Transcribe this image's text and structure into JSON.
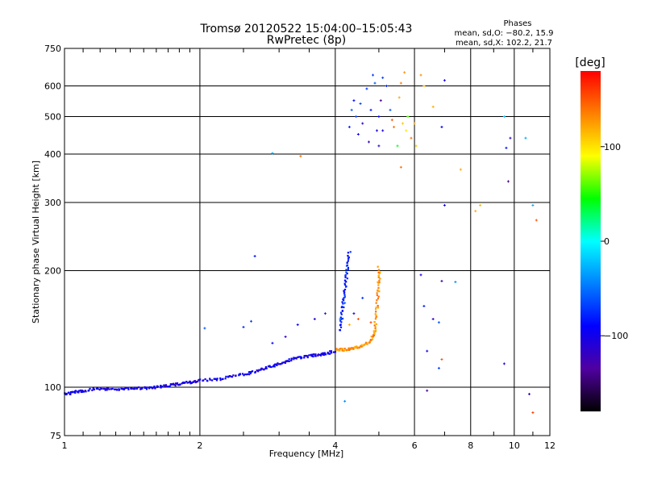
{
  "chart_data": {
    "type": "scatter",
    "title": "Tromsø 20120522 15:04:00–15:05:43",
    "subtitle": "RwPretec (8p)",
    "xlabel": "Frequency [MHz]",
    "ylabel": "Stationary phase Virtual Height [km]",
    "x_scale": "log",
    "y_scale": "log",
    "xlim": [
      1,
      12
    ],
    "ylim": [
      75,
      750
    ],
    "x_ticks": [
      1,
      2,
      4,
      6,
      8,
      10,
      12
    ],
    "y_ticks": [
      75,
      100,
      200,
      300,
      400,
      500,
      600,
      750
    ],
    "grid": true,
    "stats": {
      "title": "Phases",
      "line1": "mean, sd,O: −80.2, 15.9",
      "line2": "mean, sd,X: 102.2, 21.7"
    },
    "colorbar": {
      "label": "[deg]",
      "range": [
        -180,
        180
      ],
      "ticks": [
        100,
        0,
        -100
      ],
      "tick_labels": [
        "100",
        "0",
        "−100"
      ],
      "colormap": [
        "#000000",
        "#5000a0",
        "#0000ff",
        "#0080ff",
        "#00ffff",
        "#00ff00",
        "#ffff00",
        "#ff8000",
        "#ff0000"
      ]
    },
    "traces": [
      {
        "phase": -100,
        "pts": [
          [
            1.0,
            96
          ],
          [
            1.05,
            97
          ],
          [
            1.1,
            98
          ],
          [
            1.2,
            99
          ],
          [
            1.3,
            99
          ],
          [
            1.4,
            99
          ],
          [
            1.5,
            99.5
          ],
          [
            1.6,
            100
          ],
          [
            1.7,
            101
          ],
          [
            1.8,
            102
          ],
          [
            1.9,
            103
          ],
          [
            2.0,
            104
          ],
          [
            2.2,
            105
          ],
          [
            2.4,
            107
          ],
          [
            2.6,
            109
          ],
          [
            2.8,
            112
          ],
          [
            3.0,
            115
          ],
          [
            3.2,
            118
          ],
          [
            3.4,
            120
          ],
          [
            3.6,
            121
          ],
          [
            3.8,
            122
          ],
          [
            4.0,
            124
          ]
        ]
      },
      {
        "phase": 130,
        "pts": [
          [
            4.0,
            125
          ],
          [
            4.2,
            125
          ],
          [
            4.4,
            126
          ],
          [
            4.6,
            128
          ],
          [
            4.8,
            132
          ],
          [
            4.9,
            140
          ],
          [
            4.95,
            160
          ],
          [
            5.0,
            185
          ],
          [
            5.0,
            205
          ]
        ]
      },
      {
        "phase": -80,
        "pts": [
          [
            4.1,
            140
          ],
          [
            4.15,
            160
          ],
          [
            4.2,
            180
          ],
          [
            4.25,
            200
          ],
          [
            4.3,
            225
          ]
        ]
      }
    ],
    "scatter": [
      {
        "x": 2.05,
        "y": 142,
        "phase": -60
      },
      {
        "x": 2.5,
        "y": 143,
        "phase": -75
      },
      {
        "x": 2.6,
        "y": 148,
        "phase": -70
      },
      {
        "x": 2.65,
        "y": 218,
        "phase": -85
      },
      {
        "x": 2.9,
        "y": 130,
        "phase": -90
      },
      {
        "x": 3.1,
        "y": 135,
        "phase": -120
      },
      {
        "x": 3.3,
        "y": 145,
        "phase": -95
      },
      {
        "x": 3.6,
        "y": 150,
        "phase": -110
      },
      {
        "x": 3.8,
        "y": 155,
        "phase": -80
      },
      {
        "x": 4.1,
        "y": 150,
        "phase": -40
      },
      {
        "x": 4.2,
        "y": 165,
        "phase": -60
      },
      {
        "x": 4.4,
        "y": 155,
        "phase": -100
      },
      {
        "x": 4.6,
        "y": 170,
        "phase": -75
      },
      {
        "x": 4.3,
        "y": 145,
        "phase": 120
      },
      {
        "x": 4.5,
        "y": 150,
        "phase": 150
      },
      {
        "x": 4.8,
        "y": 147,
        "phase": 155
      },
      {
        "x": 2.9,
        "y": 402,
        "phase": -30
      },
      {
        "x": 3.35,
        "y": 395,
        "phase": 140
      },
      {
        "x": 4.3,
        "y": 470,
        "phase": -80
      },
      {
        "x": 4.35,
        "y": 520,
        "phase": -60
      },
      {
        "x": 4.4,
        "y": 550,
        "phase": -90
      },
      {
        "x": 4.45,
        "y": 500,
        "phase": -70
      },
      {
        "x": 4.5,
        "y": 450,
        "phase": -100
      },
      {
        "x": 4.55,
        "y": 540,
        "phase": -65
      },
      {
        "x": 4.6,
        "y": 480,
        "phase": -110
      },
      {
        "x": 4.7,
        "y": 590,
        "phase": -75
      },
      {
        "x": 4.75,
        "y": 430,
        "phase": -120
      },
      {
        "x": 4.8,
        "y": 520,
        "phase": -85
      },
      {
        "x": 4.85,
        "y": 640,
        "phase": -70
      },
      {
        "x": 4.9,
        "y": 610,
        "phase": -60
      },
      {
        "x": 4.95,
        "y": 460,
        "phase": -105
      },
      {
        "x": 5.0,
        "y": 500,
        "phase": -90
      },
      {
        "x": 5.05,
        "y": 550,
        "phase": -140
      },
      {
        "x": 5.1,
        "y": 630,
        "phase": -70
      },
      {
        "x": 5.0,
        "y": 420,
        "phase": -115
      },
      {
        "x": 5.1,
        "y": 460,
        "phase": -100
      },
      {
        "x": 5.2,
        "y": 600,
        "phase": -80
      },
      {
        "x": 5.3,
        "y": 520,
        "phase": -60
      },
      {
        "x": 5.35,
        "y": 490,
        "phase": 150
      },
      {
        "x": 5.4,
        "y": 470,
        "phase": 140
      },
      {
        "x": 5.5,
        "y": 420,
        "phase": 40
      },
      {
        "x": 5.55,
        "y": 560,
        "phase": 120
      },
      {
        "x": 5.6,
        "y": 610,
        "phase": 135
      },
      {
        "x": 5.65,
        "y": 480,
        "phase": 110
      },
      {
        "x": 5.7,
        "y": 650,
        "phase": 130
      },
      {
        "x": 5.75,
        "y": 460,
        "phase": 100
      },
      {
        "x": 5.8,
        "y": 500,
        "phase": 60
      },
      {
        "x": 5.9,
        "y": 440,
        "phase": 140
      },
      {
        "x": 6.0,
        "y": 480,
        "phase": 120
      },
      {
        "x": 6.05,
        "y": 420,
        "phase": 110
      },
      {
        "x": 5.6,
        "y": 370,
        "phase": 140
      },
      {
        "x": 6.2,
        "y": 640,
        "phase": 130
      },
      {
        "x": 6.3,
        "y": 600,
        "phase": 110
      },
      {
        "x": 6.6,
        "y": 530,
        "phase": 120
      },
      {
        "x": 6.9,
        "y": 470,
        "phase": -90
      },
      {
        "x": 7.0,
        "y": 620,
        "phase": -100
      },
      {
        "x": 7.6,
        "y": 365,
        "phase": 120
      },
      {
        "x": 7.0,
        "y": 295,
        "phase": -95
      },
      {
        "x": 8.2,
        "y": 285,
        "phase": 120
      },
      {
        "x": 8.4,
        "y": 295,
        "phase": 115
      },
      {
        "x": 9.5,
        "y": 500,
        "phase": -20
      },
      {
        "x": 9.6,
        "y": 415,
        "phase": -85
      },
      {
        "x": 9.7,
        "y": 340,
        "phase": -140
      },
      {
        "x": 9.8,
        "y": 440,
        "phase": -120
      },
      {
        "x": 10.6,
        "y": 440,
        "phase": -30
      },
      {
        "x": 11.2,
        "y": 270,
        "phase": 150
      },
      {
        "x": 11.0,
        "y": 295,
        "phase": -30
      },
      {
        "x": 6.2,
        "y": 195,
        "phase": -100
      },
      {
        "x": 6.9,
        "y": 188,
        "phase": -130
      },
      {
        "x": 7.4,
        "y": 187,
        "phase": -40
      },
      {
        "x": 6.3,
        "y": 162,
        "phase": -80
      },
      {
        "x": 6.6,
        "y": 150,
        "phase": -120
      },
      {
        "x": 6.8,
        "y": 147,
        "phase": -60
      },
      {
        "x": 6.4,
        "y": 124,
        "phase": -100
      },
      {
        "x": 6.4,
        "y": 98,
        "phase": -140
      },
      {
        "x": 6.8,
        "y": 112,
        "phase": -70
      },
      {
        "x": 6.9,
        "y": 118,
        "phase": 150
      },
      {
        "x": 9.5,
        "y": 115,
        "phase": -110
      },
      {
        "x": 10.8,
        "y": 96,
        "phase": -120
      },
      {
        "x": 11.0,
        "y": 86,
        "phase": 160
      },
      {
        "x": 4.2,
        "y": 92,
        "phase": -40
      }
    ]
  }
}
